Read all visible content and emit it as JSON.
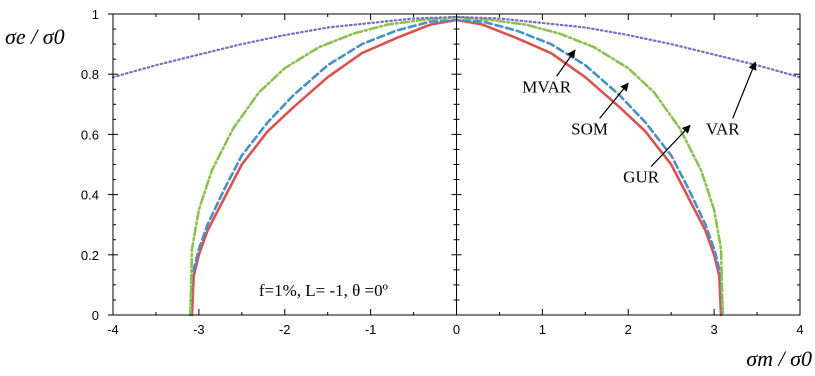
{
  "chart_data": {
    "type": "line",
    "title": "",
    "xlabel": "σm / σ0",
    "ylabel": "σe / σ0",
    "xlim": [
      -4,
      4
    ],
    "ylim": [
      0,
      1
    ],
    "xticks": [
      -4,
      -3,
      -2,
      -1,
      0,
      1,
      2,
      3,
      4
    ],
    "yticks": [
      0,
      0.2,
      0.4,
      0.6,
      0.8,
      1
    ],
    "ytick_labels": [
      "0",
      "0.2",
      "0.4",
      "0.6",
      "0.8",
      "1"
    ],
    "grid": false,
    "legend": "none",
    "parameters_text": "f=1%, L= -1, θ =0º",
    "series": [
      {
        "name": "MVAR",
        "color": "#d9534f",
        "style": "solid",
        "x": [
          -3.08,
          -3.06,
          -3.0,
          -2.9,
          -2.7,
          -2.5,
          -2.2,
          -1.9,
          -1.5,
          -1.1,
          -0.7,
          -0.3,
          0,
          0.3,
          0.7,
          1.1,
          1.5,
          1.9,
          2.2,
          2.5,
          2.7,
          2.9,
          3.0,
          3.06,
          3.08
        ],
        "y": [
          0.0,
          0.13,
          0.2,
          0.28,
          0.39,
          0.5,
          0.61,
          0.69,
          0.79,
          0.87,
          0.92,
          0.965,
          0.98,
          0.965,
          0.92,
          0.87,
          0.79,
          0.69,
          0.61,
          0.5,
          0.39,
          0.28,
          0.2,
          0.13,
          0.0
        ]
      },
      {
        "name": "SOM",
        "color": "#4a90c4",
        "style": "dashed",
        "x": [
          -3.1,
          -3.08,
          -3.0,
          -2.9,
          -2.7,
          -2.5,
          -2.2,
          -1.9,
          -1.5,
          -1.1,
          -0.7,
          -0.3,
          0,
          0.3,
          0.7,
          1.1,
          1.5,
          1.9,
          2.2,
          2.5,
          2.7,
          2.9,
          3.0,
          3.08,
          3.1
        ],
        "y": [
          0.0,
          0.13,
          0.22,
          0.3,
          0.42,
          0.53,
          0.64,
          0.73,
          0.83,
          0.9,
          0.945,
          0.975,
          0.98,
          0.975,
          0.945,
          0.9,
          0.83,
          0.73,
          0.64,
          0.53,
          0.42,
          0.3,
          0.22,
          0.13,
          0.0
        ]
      },
      {
        "name": "GUR",
        "color": "#8cc152",
        "style": "dashdot",
        "x": [
          -3.1,
          -3.08,
          -3.0,
          -2.85,
          -2.6,
          -2.3,
          -2.0,
          -1.6,
          -1.2,
          -0.8,
          -0.4,
          0,
          0.4,
          0.8,
          1.2,
          1.6,
          2.0,
          2.3,
          2.6,
          2.85,
          3.0,
          3.08,
          3.1
        ],
        "y": [
          0.0,
          0.22,
          0.35,
          0.48,
          0.62,
          0.74,
          0.82,
          0.89,
          0.935,
          0.965,
          0.98,
          0.99,
          0.98,
          0.965,
          0.935,
          0.89,
          0.82,
          0.74,
          0.62,
          0.48,
          0.35,
          0.22,
          0.0
        ]
      },
      {
        "name": "VAR",
        "color": "#7b68c8",
        "style": "dotted",
        "x": [
          -4,
          -3.5,
          -3,
          -2.5,
          -2,
          -1.5,
          -1,
          -0.5,
          0,
          0.5,
          1,
          1.5,
          2,
          2.5,
          3,
          3.5,
          4
        ],
        "y": [
          0.79,
          0.83,
          0.865,
          0.9,
          0.93,
          0.955,
          0.97,
          0.985,
          0.99,
          0.985,
          0.97,
          0.955,
          0.93,
          0.9,
          0.865,
          0.83,
          0.79
        ]
      }
    ],
    "annotations": [
      {
        "text": "MVAR",
        "x": 1.05,
        "y": 0.74,
        "arrow_to": [
          1.38,
          0.88
        ]
      },
      {
        "text": "SOM",
        "x": 1.55,
        "y": 0.6,
        "arrow_to": [
          2.0,
          0.77
        ]
      },
      {
        "text": "GUR",
        "x": 2.15,
        "y": 0.44,
        "arrow_to": [
          2.72,
          0.63
        ]
      },
      {
        "text": "VAR",
        "x": 3.1,
        "y": 0.6,
        "arrow_to": [
          3.48,
          0.84
        ]
      }
    ]
  }
}
